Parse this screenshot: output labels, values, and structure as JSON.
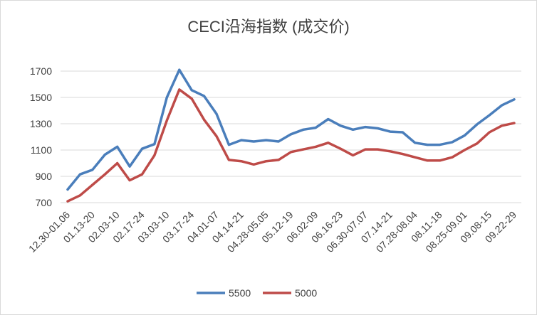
{
  "chart_data": {
    "type": "line",
    "title": "CECI沿海指数 (成交价)",
    "xlabel": "",
    "ylabel": "",
    "ylim": [
      700,
      1700
    ],
    "yticks": [
      700,
      900,
      1100,
      1300,
      1500,
      1700
    ],
    "grid": true,
    "legend_position": "bottom",
    "categories": [
      "12.30-01.06",
      "",
      "01.13-20",
      "",
      "02.03-10",
      "",
      "02.17-24",
      "",
      "03.03-10",
      "",
      "03.17-24",
      "",
      "04.01-07",
      "",
      "04.14-21",
      "",
      "04.28-05.05",
      "",
      "05.12-19",
      "",
      "06.02-09",
      "",
      "06.16-23",
      "",
      "06.30-07.07",
      "",
      "07.14-21",
      "",
      "07.28-08.04",
      "",
      "08.11-18",
      "",
      "08.25-09.01",
      "",
      "09.08-15",
      "",
      "09.22-29"
    ],
    "series": [
      {
        "name": "5500",
        "color": "#4a7ebb",
        "values": [
          800,
          915,
          950,
          1065,
          1125,
          975,
          1110,
          1145,
          1500,
          1710,
          1555,
          1510,
          1375,
          1140,
          1175,
          1165,
          1175,
          1165,
          1220,
          1255,
          1270,
          1335,
          1285,
          1255,
          1275,
          1265,
          1240,
          1235,
          1155,
          1140,
          1140,
          1160,
          1210,
          1295,
          1365,
          1440,
          1485
        ]
      },
      {
        "name": "5000",
        "color": "#be4b48",
        "values": [
          710,
          755,
          835,
          915,
          1000,
          870,
          915,
          1060,
          1325,
          1560,
          1490,
          1330,
          1205,
          1025,
          1015,
          990,
          1015,
          1025,
          1085,
          1105,
          1125,
          1155,
          1110,
          1060,
          1105,
          1105,
          1090,
          1070,
          1045,
          1020,
          1020,
          1045,
          1100,
          1150,
          1235,
          1285,
          1305
        ]
      }
    ]
  }
}
